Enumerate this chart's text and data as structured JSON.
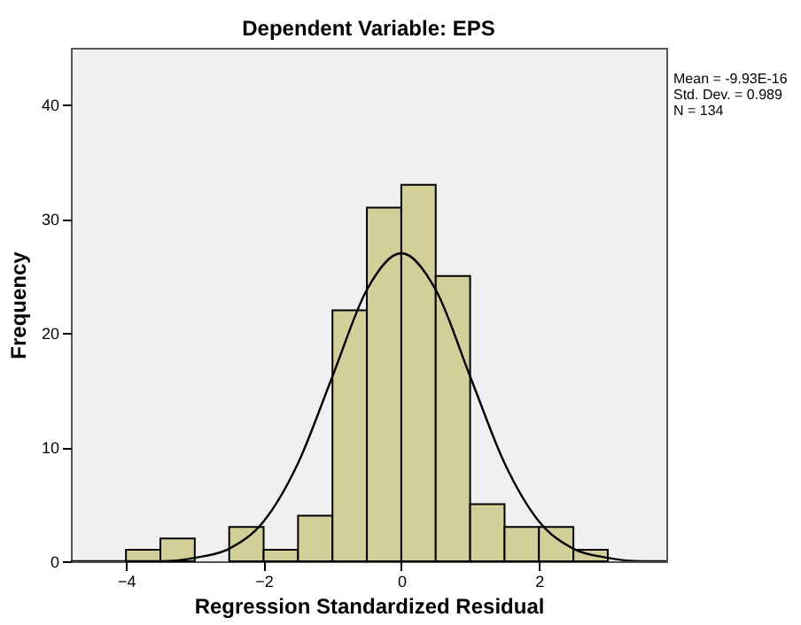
{
  "chart_data": {
    "type": "histogram",
    "title": "Dependent Variable: EPS",
    "xlabel": "Regression Standardized Residual",
    "ylabel": "Frequency",
    "bins": [
      -4,
      -3.5,
      -3,
      -2.5,
      -2,
      -1.5,
      -1,
      -0.5,
      0,
      0.5,
      1,
      1.5,
      2,
      2.5,
      3
    ],
    "series": [
      {
        "type": "histogram",
        "color": "#d3cf98",
        "values": [
          1,
          2,
          0,
          3,
          1,
          4,
          22,
          31,
          33,
          25,
          5,
          3,
          3,
          1
        ]
      },
      {
        "type": "line",
        "color": "#000000",
        "x": [
          -4.8,
          -4,
          -3.5,
          -3,
          -2.5,
          -2,
          -1.5,
          -1,
          -0.5,
          0,
          0.5,
          1,
          1.5,
          2,
          2.5,
          3,
          3.5,
          3.85
        ],
        "values": [
          0,
          0,
          0,
          0.3,
          1.1,
          3.5,
          8.6,
          16.2,
          23.8,
          27,
          23.8,
          16.2,
          8.6,
          3.5,
          1.1,
          0.3,
          0,
          0
        ]
      }
    ],
    "xlim": [
      -4.8,
      3.85
    ],
    "ylim": [
      0,
      45
    ],
    "xticks": [
      -4,
      -2,
      0,
      2
    ],
    "yticks": [
      0,
      10,
      20,
      30,
      40
    ],
    "annotations": [
      "Mean = -9.93E-16",
      "Std. Dev. = 0.989",
      "N = 134"
    ]
  }
}
